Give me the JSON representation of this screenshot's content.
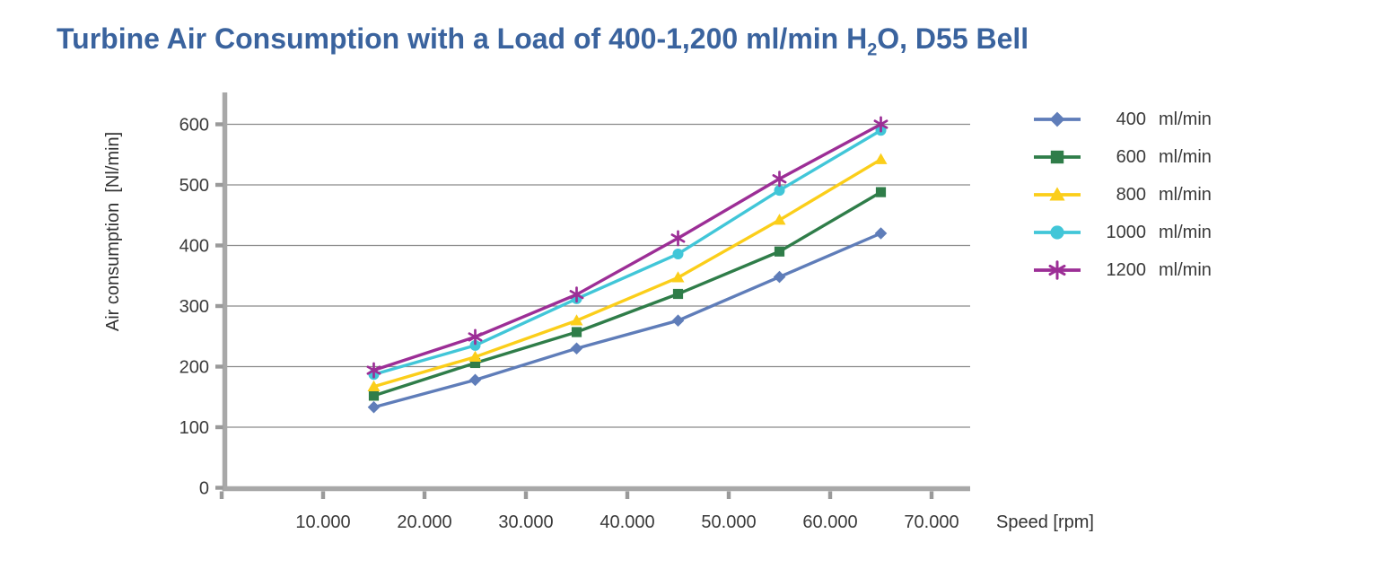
{
  "page": {
    "background": "#ffffff"
  },
  "title": {
    "prefix": "Turbine Air Consumption with a Load of 400-1,200 ml/min H",
    "sub": "2",
    "suffix": "O, D55 Bell",
    "color": "#3a639e"
  },
  "chart_data": {
    "type": "line",
    "title": "Turbine Air Consumption with a Load of 400-1,200 ml/min H2O, D55 Bell",
    "xlabel": "Speed [rpm]",
    "ylabel": "Air consumption  [Nl/min]",
    "xlim": [
      0,
      73800
    ],
    "ylim": [
      0,
      650
    ],
    "grid": "horizontal",
    "legend_position": "right",
    "colors": {
      "axis": "#a8a8a8",
      "gridline": "#8a8a8a",
      "tick_text": "#3a3a3a",
      "title_text": "#3a639e"
    },
    "x": [
      15000,
      25000,
      35000,
      45000,
      55000,
      65000
    ],
    "x_ticks": {
      "values": [
        10000,
        20000,
        30000,
        40000,
        50000,
        60000,
        70000
      ],
      "labels": [
        "10.000",
        "20.000",
        "30.000",
        "40.000",
        "50.000",
        "60.000",
        "70.000"
      ]
    },
    "y_ticks": {
      "values": [
        0,
        100,
        200,
        300,
        400,
        500,
        600
      ],
      "labels": [
        "0",
        "100",
        "200",
        "300",
        "400",
        "500",
        "600"
      ]
    },
    "series": [
      {
        "name": "400 ml/min",
        "legend_value": "400",
        "legend_unit": "ml/min",
        "color": "#5f7db9",
        "marker": "diamond",
        "values": [
          133,
          178,
          230,
          276,
          348,
          420
        ]
      },
      {
        "name": "600 ml/min",
        "legend_value": "600",
        "legend_unit": "ml/min",
        "color": "#2f7d49",
        "marker": "square",
        "values": [
          152,
          206,
          257,
          320,
          390,
          488
        ]
      },
      {
        "name": "800 ml/min",
        "legend_value": "800",
        "legend_unit": "ml/min",
        "color": "#fbce1a",
        "marker": "triangle",
        "values": [
          167,
          216,
          276,
          347,
          442,
          542
        ]
      },
      {
        "name": "1000 ml/min",
        "legend_value": "1000",
        "legend_unit": "ml/min",
        "color": "#41c6d8",
        "marker": "circle",
        "values": [
          187,
          235,
          312,
          386,
          491,
          590
        ]
      },
      {
        "name": "1200 ml/min",
        "legend_value": "1200",
        "legend_unit": "ml/min",
        "color": "#9c2e96",
        "marker": "asterisk",
        "values": [
          194,
          249,
          319,
          412,
          510,
          600
        ]
      }
    ]
  }
}
